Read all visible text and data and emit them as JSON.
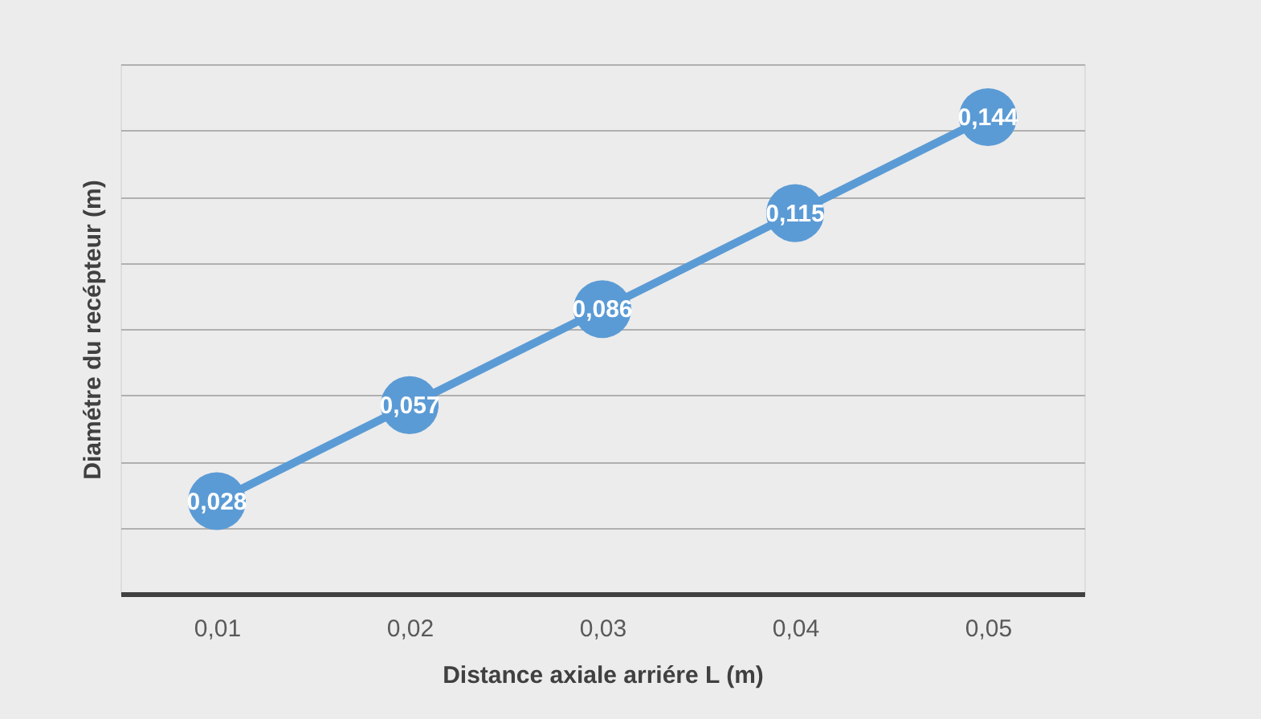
{
  "chart_data": {
    "type": "line",
    "xlabel": "Distance axiale arriére L (m)",
    "ylabel": "Diamétre du recépteur (m)",
    "categories": [
      "0,01",
      "0,02",
      "0,03",
      "0,04",
      "0,05"
    ],
    "series": [
      {
        "color": "#5b9bd5",
        "values": [
          0.028,
          0.057,
          0.086,
          0.115,
          0.144
        ],
        "value_labels": [
          "0,028",
          "0,057",
          "0,086",
          "0,115",
          "0,144"
        ]
      }
    ],
    "tick_labels": "x",
    "grid": "y",
    "marker": "circle",
    "line_style": "solid"
  }
}
